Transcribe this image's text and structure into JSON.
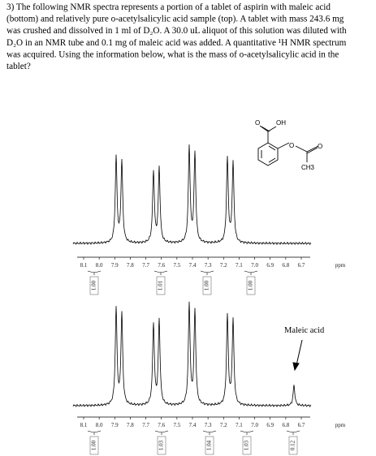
{
  "question": {
    "lines": [
      "3) The following NMR spectra represents a portion of a tablet of aspirin with maleic acid",
      "(bottom) and relatively pure o-acetylsalicylic acid sample (top). A tablet with mass 243.6 mg",
      "was crushed and dissolved in 1 ml of D₂O. A 30.0 uL aliquot of this solution was diluted with",
      "D₂O in an NMR tube and 0.1 mg of maleic acid was added. A quantitative ¹H NMR spectrum",
      "was acquired. Using the information below, what is the mass of o-acetylsalicylic acid in the",
      "tablet?"
    ]
  },
  "molecule": {
    "labels": [
      "O",
      "OH",
      "O",
      "O",
      "CH3"
    ]
  },
  "spectra": [
    {
      "ticks": [
        "8.1",
        "8.0",
        "7.9",
        "7.8",
        "7.7",
        "7.6",
        "7.5",
        "7.4",
        "7.3",
        "7.2",
        "7.1",
        "7.0",
        "6.9",
        "6.8",
        "6.7"
      ],
      "unit": "ppm",
      "integrals": [
        "1.00",
        "1.01",
        "1.00",
        "1.00"
      ]
    },
    {
      "ticks": [
        "8.1",
        "8.0",
        "7.9",
        "7.8",
        "7.7",
        "7.6",
        "7.5",
        "7.4",
        "7.3",
        "7.2",
        "7.1",
        "7.0",
        "6.9",
        "6.8",
        "6.7"
      ],
      "unit": "ppm",
      "integrals": [
        "1.00",
        "1.03",
        "1.04",
        "1.03",
        "0.12"
      ],
      "annotation": "Maleic acid"
    }
  ]
}
